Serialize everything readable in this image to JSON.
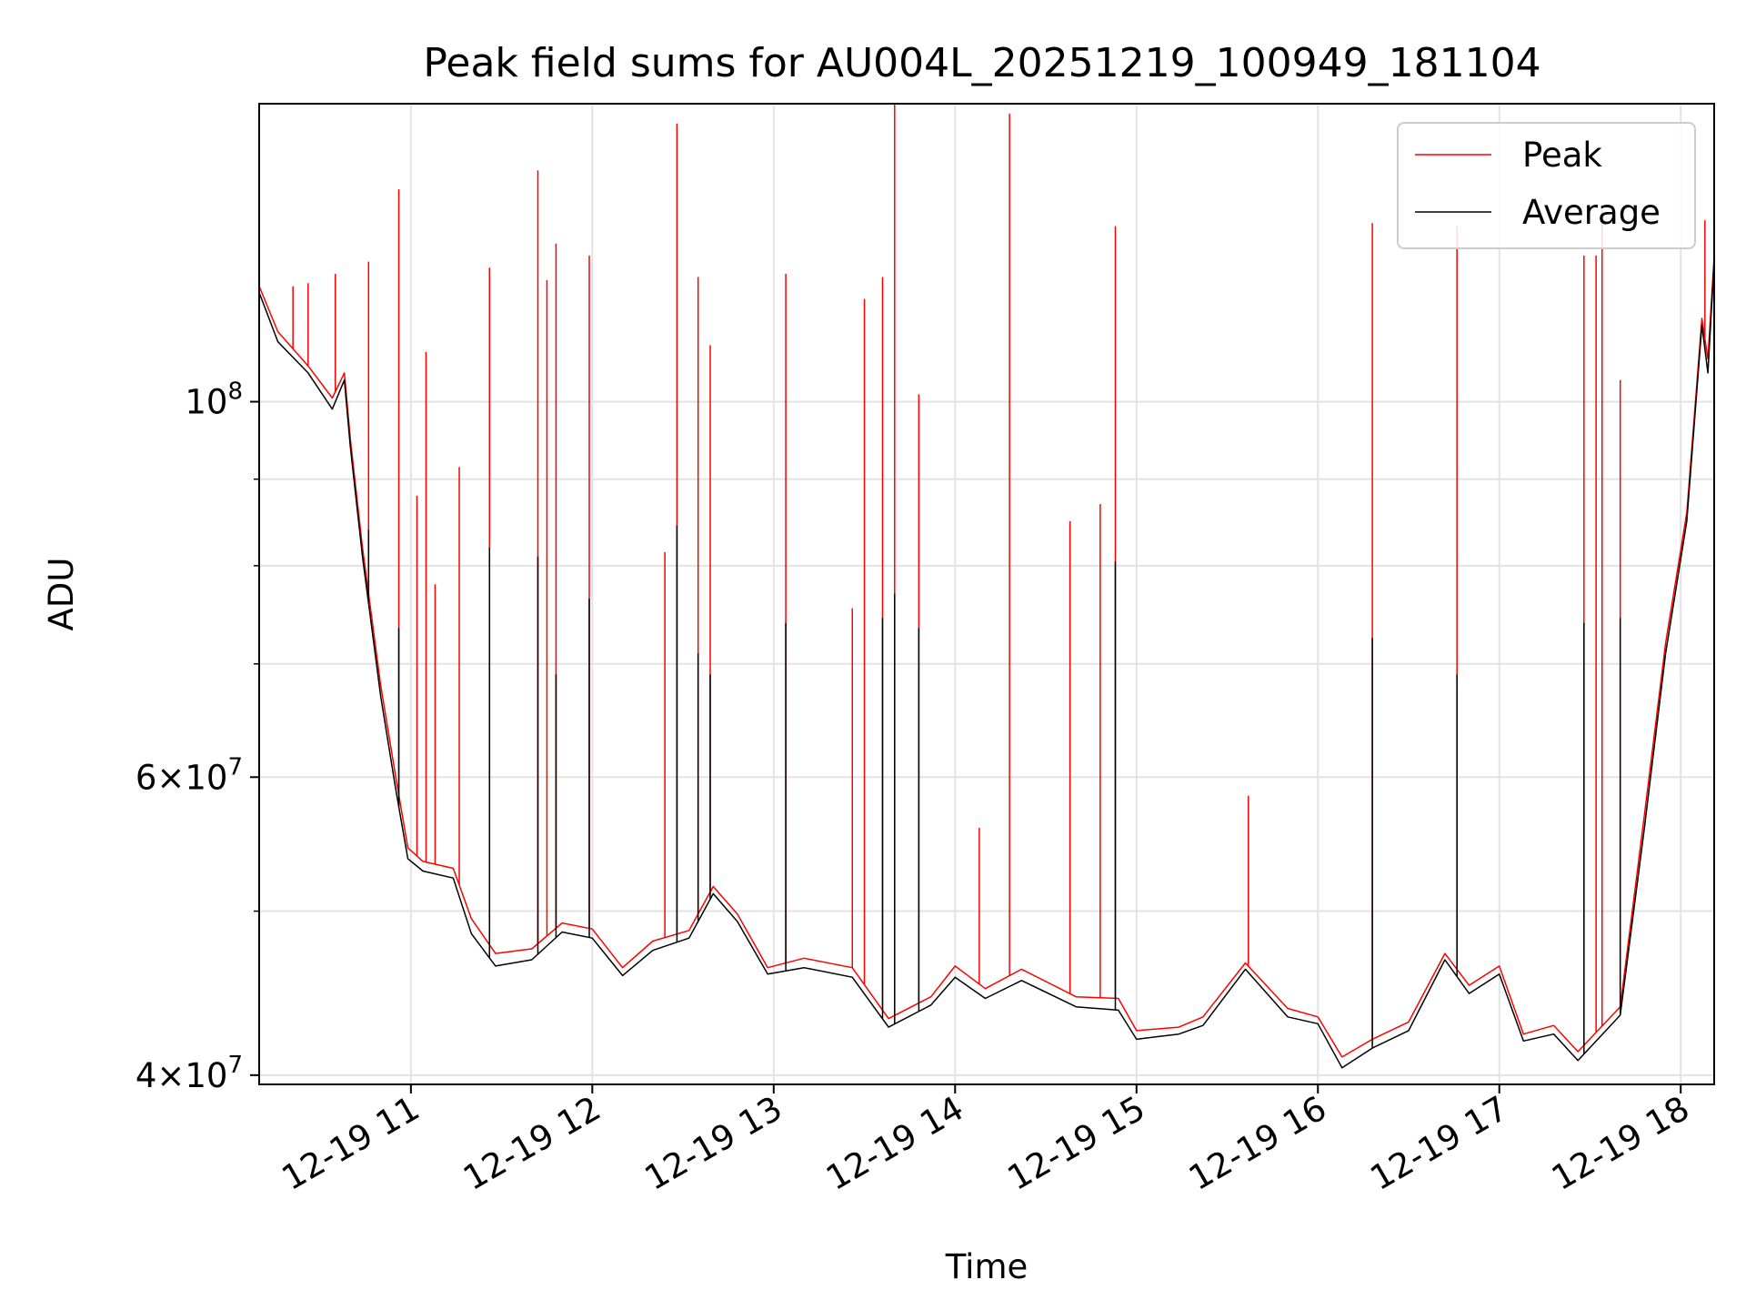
{
  "chart_data": {
    "type": "line",
    "title": "Peak field sums for AU004L_20251219_100949_181104",
    "xlabel": "Time",
    "ylabel": "ADU",
    "y_scale": "log",
    "ylim": [
      39500000,
      150000000
    ],
    "xlim": [
      "2025-12-19 10:09:49",
      "2025-12-19 18:11:04"
    ],
    "grid": true,
    "legend": "top-right",
    "x_ticks": [
      {
        "t": "2025-12-19 11:00",
        "label": "12-19 11"
      },
      {
        "t": "2025-12-19 12:00",
        "label": "12-19 12"
      },
      {
        "t": "2025-12-19 13:00",
        "label": "12-19 13"
      },
      {
        "t": "2025-12-19 14:00",
        "label": "12-19 14"
      },
      {
        "t": "2025-12-19 15:00",
        "label": "12-19 15"
      },
      {
        "t": "2025-12-19 16:00",
        "label": "12-19 16"
      },
      {
        "t": "2025-12-19 17:00",
        "label": "12-19 17"
      },
      {
        "t": "2025-12-19 18:00",
        "label": "12-19 18"
      }
    ],
    "y_major_ticks": [
      {
        "v": 40000000,
        "base": "4×10",
        "exp": "7"
      },
      {
        "v": 60000000,
        "base": "6×10",
        "exp": "7"
      },
      {
        "v": 100000000,
        "base": "10",
        "exp": "8"
      }
    ],
    "y_minor_ticks": [
      50000000,
      70000000,
      80000000,
      90000000
    ],
    "series": [
      {
        "name": "Peak",
        "color": "#ff0000",
        "baseline": [
          [
            "2025-12-19 10:09:49",
            117000000
          ],
          [
            "2025-12-19 10:16:00",
            110000000
          ],
          [
            "2025-12-19 10:26:00",
            105000000
          ],
          [
            "2025-12-19 10:34:00",
            100500000
          ],
          [
            "2025-12-19 10:38:00",
            104000000
          ],
          [
            "2025-12-19 10:40:00",
            95000000
          ],
          [
            "2025-12-19 10:44:00",
            82000000
          ],
          [
            "2025-12-19 10:50:00",
            68000000
          ],
          [
            "2025-12-19 10:55:00",
            60000000
          ],
          [
            "2025-12-19 10:59:00",
            54500000
          ],
          [
            "2025-12-19 11:04:00",
            53500000
          ],
          [
            "2025-12-19 11:14:00",
            53000000
          ],
          [
            "2025-12-19 11:20:00",
            49500000
          ],
          [
            "2025-12-19 11:28:00",
            47200000
          ],
          [
            "2025-12-19 11:40:00",
            47500000
          ],
          [
            "2025-12-19 11:50:00",
            49200000
          ],
          [
            "2025-12-19 12:00:00",
            48800000
          ],
          [
            "2025-12-19 12:10:00",
            46300000
          ],
          [
            "2025-12-19 12:20:00",
            48000000
          ],
          [
            "2025-12-19 12:32:00",
            48700000
          ],
          [
            "2025-12-19 12:40:00",
            51700000
          ],
          [
            "2025-12-19 12:48:00",
            49800000
          ],
          [
            "2025-12-19 12:58:00",
            46300000
          ],
          [
            "2025-12-19 13:10:00",
            46900000
          ],
          [
            "2025-12-19 13:26:00",
            46300000
          ],
          [
            "2025-12-19 13:38:00",
            43200000
          ],
          [
            "2025-12-19 13:52:00",
            44500000
          ],
          [
            "2025-12-19 14:00:00",
            46400000
          ],
          [
            "2025-12-19 14:10:00",
            45000000
          ],
          [
            "2025-12-19 14:22:00",
            46200000
          ],
          [
            "2025-12-19 14:40:00",
            44500000
          ],
          [
            "2025-12-19 14:54:00",
            44400000
          ],
          [
            "2025-12-19 15:00:00",
            42500000
          ],
          [
            "2025-12-19 15:14:00",
            42700000
          ],
          [
            "2025-12-19 15:22:00",
            43300000
          ],
          [
            "2025-12-19 15:36:00",
            46600000
          ],
          [
            "2025-12-19 15:50:00",
            43800000
          ],
          [
            "2025-12-19 16:00:00",
            43300000
          ],
          [
            "2025-12-19 16:08:00",
            41000000
          ],
          [
            "2025-12-19 16:18:00",
            42000000
          ],
          [
            "2025-12-19 16:30:00",
            43000000
          ],
          [
            "2025-12-19 16:42:00",
            47200000
          ],
          [
            "2025-12-19 16:50:00",
            45200000
          ],
          [
            "2025-12-19 17:00:00",
            46400000
          ],
          [
            "2025-12-19 17:08:00",
            42300000
          ],
          [
            "2025-12-19 17:18:00",
            42800000
          ],
          [
            "2025-12-19 17:26:00",
            41300000
          ],
          [
            "2025-12-19 17:40:00",
            43900000
          ],
          [
            "2025-12-19 17:48:00",
            57000000
          ],
          [
            "2025-12-19 17:55:00",
            72000000
          ],
          [
            "2025-12-19 18:02:00",
            86000000
          ],
          [
            "2025-12-19 18:07:00",
            112000000
          ],
          [
            "2025-12-19 18:09:00",
            106000000
          ],
          [
            "2025-12-19 18:11:04",
            122000000
          ]
        ],
        "spikes": [
          [
            "2025-12-19 10:21:00",
            117000000
          ],
          [
            "2025-12-19 10:26:00",
            117500000
          ],
          [
            "2025-12-19 10:35:00",
            119000000
          ],
          [
            "2025-12-19 10:44:00",
            82000000
          ],
          [
            "2025-12-19 10:46:00",
            121000000
          ],
          [
            "2025-12-19 10:56:00",
            133500000
          ],
          [
            "2025-12-19 11:02:00",
            88000000
          ],
          [
            "2025-12-19 11:05:00",
            107000000
          ],
          [
            "2025-12-19 11:08:00",
            78000000
          ],
          [
            "2025-12-19 11:16:00",
            91500000
          ],
          [
            "2025-12-19 11:26:00",
            120000000
          ],
          [
            "2025-12-19 11:42:00",
            137000000
          ],
          [
            "2025-12-19 11:45:00",
            118000000
          ],
          [
            "2025-12-19 11:48:00",
            124000000
          ],
          [
            "2025-12-19 11:59:00",
            122000000
          ],
          [
            "2025-12-19 12:24:00",
            81500000
          ],
          [
            "2025-12-19 12:28:00",
            146000000
          ],
          [
            "2025-12-19 12:35:00",
            118500000
          ],
          [
            "2025-12-19 12:39:00",
            108000000
          ],
          [
            "2025-12-19 13:04:00",
            119000000
          ],
          [
            "2025-12-19 13:26:00",
            75500000
          ],
          [
            "2025-12-19 13:30:00",
            115000000
          ],
          [
            "2025-12-19 13:36:00",
            118500000
          ],
          [
            "2025-12-19 13:40:00",
            150000000
          ],
          [
            "2025-12-19 13:48:00",
            101000000
          ],
          [
            "2025-12-19 14:08:00",
            56000000
          ],
          [
            "2025-12-19 14:18:00",
            148000000
          ],
          [
            "2025-12-19 14:38:00",
            85000000
          ],
          [
            "2025-12-19 14:48:00",
            87000000
          ],
          [
            "2025-12-19 14:53:00",
            127000000
          ],
          [
            "2025-12-19 15:37:00",
            58500000
          ],
          [
            "2025-12-19 16:18:00",
            127500000
          ],
          [
            "2025-12-19 16:46:00",
            127000000
          ],
          [
            "2025-12-19 17:28:00",
            122000000
          ],
          [
            "2025-12-19 17:32:00",
            122000000
          ],
          [
            "2025-12-19 17:34:00",
            130000000
          ],
          [
            "2025-12-19 17:40:00",
            103000000
          ],
          [
            "2025-12-19 18:08:00",
            128000000
          ]
        ]
      },
      {
        "name": "Average",
        "color": "#000000",
        "baseline": [
          [
            "2025-12-19 10:09:49",
            116000000
          ],
          [
            "2025-12-19 10:16:00",
            108500000
          ],
          [
            "2025-12-19 10:26:00",
            104000000
          ],
          [
            "2025-12-19 10:34:00",
            99000000
          ],
          [
            "2025-12-19 10:38:00",
            103000000
          ],
          [
            "2025-12-19 10:40:00",
            94000000
          ],
          [
            "2025-12-19 10:44:00",
            81000000
          ],
          [
            "2025-12-19 10:50:00",
            67000000
          ],
          [
            "2025-12-19 10:55:00",
            59000000
          ],
          [
            "2025-12-19 10:59:00",
            53700000
          ],
          [
            "2025-12-19 11:04:00",
            52800000
          ],
          [
            "2025-12-19 11:14:00",
            52300000
          ],
          [
            "2025-12-19 11:20:00",
            48500000
          ],
          [
            "2025-12-19 11:28:00",
            46400000
          ],
          [
            "2025-12-19 11:40:00",
            46800000
          ],
          [
            "2025-12-19 11:50:00",
            48600000
          ],
          [
            "2025-12-19 12:00:00",
            48200000
          ],
          [
            "2025-12-19 12:10:00",
            45800000
          ],
          [
            "2025-12-19 12:20:00",
            47400000
          ],
          [
            "2025-12-19 12:32:00",
            48200000
          ],
          [
            "2025-12-19 12:40:00",
            51200000
          ],
          [
            "2025-12-19 12:48:00",
            49300000
          ],
          [
            "2025-12-19 12:58:00",
            45900000
          ],
          [
            "2025-12-19 13:10:00",
            46300000
          ],
          [
            "2025-12-19 13:26:00",
            45700000
          ],
          [
            "2025-12-19 13:38:00",
            42700000
          ],
          [
            "2025-12-19 13:52:00",
            44000000
          ],
          [
            "2025-12-19 14:00:00",
            45700000
          ],
          [
            "2025-12-19 14:10:00",
            44400000
          ],
          [
            "2025-12-19 14:22:00",
            45500000
          ],
          [
            "2025-12-19 14:40:00",
            43900000
          ],
          [
            "2025-12-19 14:54:00",
            43700000
          ],
          [
            "2025-12-19 15:00:00",
            42000000
          ],
          [
            "2025-12-19 15:14:00",
            42300000
          ],
          [
            "2025-12-19 15:22:00",
            42800000
          ],
          [
            "2025-12-19 15:36:00",
            46200000
          ],
          [
            "2025-12-19 15:50:00",
            43300000
          ],
          [
            "2025-12-19 16:00:00",
            42900000
          ],
          [
            "2025-12-19 16:08:00",
            40400000
          ],
          [
            "2025-12-19 16:18:00",
            41500000
          ],
          [
            "2025-12-19 16:30:00",
            42500000
          ],
          [
            "2025-12-19 16:42:00",
            46800000
          ],
          [
            "2025-12-19 16:50:00",
            44700000
          ],
          [
            "2025-12-19 17:00:00",
            45900000
          ],
          [
            "2025-12-19 17:08:00",
            41900000
          ],
          [
            "2025-12-19 17:18:00",
            42300000
          ],
          [
            "2025-12-19 17:26:00",
            40800000
          ],
          [
            "2025-12-19 17:40:00",
            43400000
          ],
          [
            "2025-12-19 17:48:00",
            56000000
          ],
          [
            "2025-12-19 17:55:00",
            71000000
          ],
          [
            "2025-12-19 18:02:00",
            85000000
          ],
          [
            "2025-12-19 18:07:00",
            111000000
          ],
          [
            "2025-12-19 18:09:00",
            104000000
          ],
          [
            "2025-12-19 18:11:04",
            121000000
          ]
        ],
        "spikes": [
          [
            "2025-12-19 10:46:00",
            84000000
          ],
          [
            "2025-12-19 10:56:00",
            73500000
          ],
          [
            "2025-12-19 11:26:00",
            82000000
          ],
          [
            "2025-12-19 11:42:00",
            81000000
          ],
          [
            "2025-12-19 11:48:00",
            69000000
          ],
          [
            "2025-12-19 11:59:00",
            76500000
          ],
          [
            "2025-12-19 12:28:00",
            84500000
          ],
          [
            "2025-12-19 12:35:00",
            71000000
          ],
          [
            "2025-12-19 12:39:00",
            69000000
          ],
          [
            "2025-12-19 13:04:00",
            74000000
          ],
          [
            "2025-12-19 13:36:00",
            74500000
          ],
          [
            "2025-12-19 13:40:00",
            77000000
          ],
          [
            "2025-12-19 13:48:00",
            73500000
          ],
          [
            "2025-12-19 14:53:00",
            80500000
          ],
          [
            "2025-12-19 16:18:00",
            72500000
          ],
          [
            "2025-12-19 16:46:00",
            69000000
          ],
          [
            "2025-12-19 17:28:00",
            74000000
          ],
          [
            "2025-12-19 17:40:00",
            74500000
          ]
        ]
      }
    ]
  }
}
